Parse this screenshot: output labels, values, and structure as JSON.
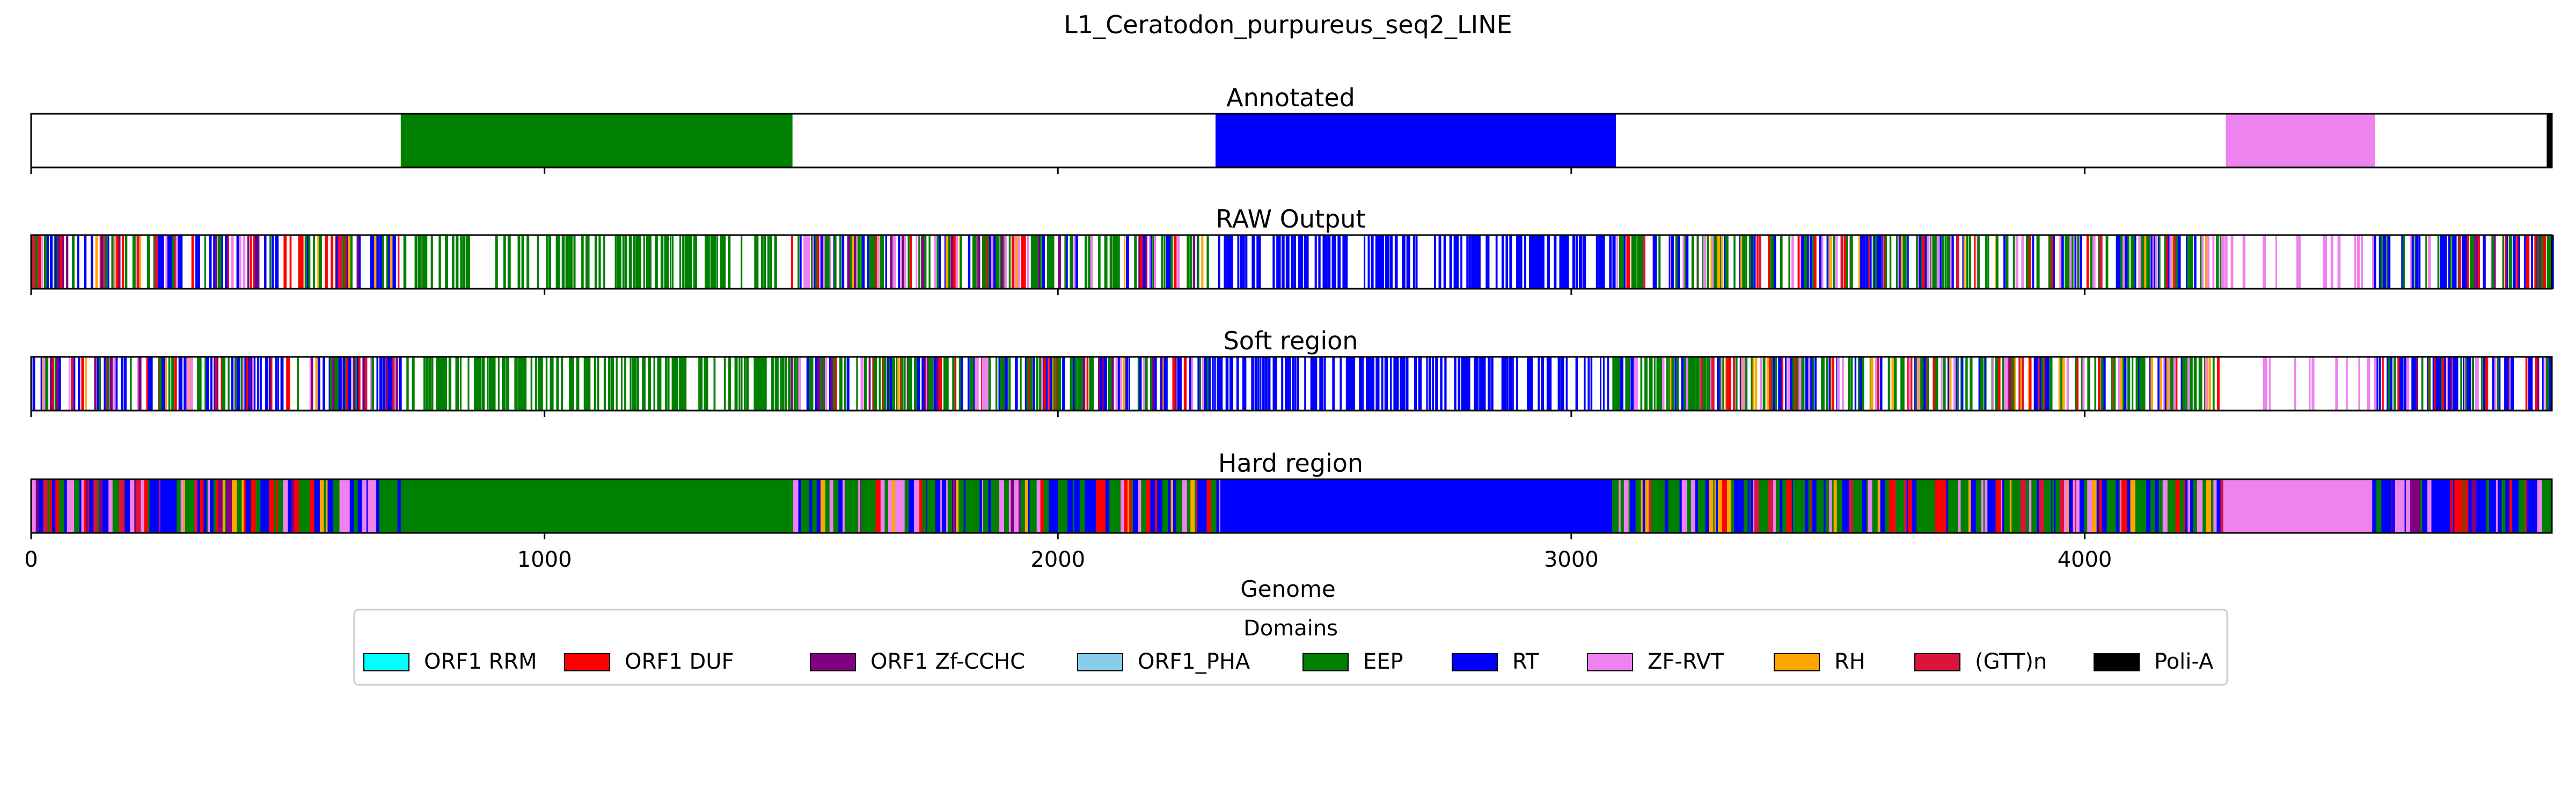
{
  "chart_data": {
    "type": "heatmap",
    "title": "L1_Ceratodon_purpureus_seq2_LINE",
    "xlabel": "Genome",
    "xlim": [
      0,
      4910
    ],
    "xticks": [
      0,
      1000,
      2000,
      3000,
      4000
    ],
    "xtick_labels": [
      "0",
      "1000",
      "2000",
      "3000",
      "4000"
    ],
    "grid": "dashed vertical gridlines at x ticks",
    "legend": {
      "title": "Domains",
      "placement": "bottom-center",
      "entries": [
        {
          "label": "ORF1 RRM",
          "color": "#00ffff"
        },
        {
          "label": "ORF1 DUF",
          "color": "#ff0000"
        },
        {
          "label": "ORF1 Zf-CCHC",
          "color": "#800080"
        },
        {
          "label": "ORF1_PHA",
          "color": "#87ceeb"
        },
        {
          "label": "EEP",
          "color": "#008000"
        },
        {
          "label": "RT",
          "color": "#0000ff"
        },
        {
          "label": "ZF-RVT",
          "color": "#ee82ee"
        },
        {
          "label": "RH",
          "color": "#ffa500"
        },
        {
          "label": "(GTT)n",
          "color": "#dc143c"
        },
        {
          "label": "Poli-A",
          "color": "#000000"
        }
      ]
    },
    "tracks": [
      {
        "name": "Annotated",
        "segments": [
          {
            "domain": "EEP",
            "start": 720,
            "end": 1483
          },
          {
            "domain": "RT",
            "start": 2307,
            "end": 3087
          },
          {
            "domain": "ZF-RVT",
            "start": 4275,
            "end": 4566
          },
          {
            "domain": "Poli-A",
            "start": 4900,
            "end": 4910
          }
        ]
      },
      {
        "name": "RAW Output",
        "mode": "sparse",
        "regions": [
          {
            "start": 0,
            "end": 720,
            "mix": [
              "RT",
              "EEP",
              "ORF1 DUF",
              "ZF-RVT",
              "ORF1 Zf-CCHC",
              "RH",
              "(GTT)n"
            ],
            "density": 0.55
          },
          {
            "start": 720,
            "end": 1480,
            "mix": [
              "EEP"
            ],
            "density": 0.45
          },
          {
            "start": 1480,
            "end": 2300,
            "mix": [
              "EEP",
              "RT",
              "ZF-RVT",
              "ORF1 DUF",
              "ORF1 Zf-CCHC",
              "RH"
            ],
            "density": 0.6
          },
          {
            "start": 2300,
            "end": 3080,
            "mix": [
              "RT"
            ],
            "density": 0.5
          },
          {
            "start": 3080,
            "end": 4270,
            "mix": [
              "EEP",
              "RT",
              "ZF-RVT",
              "ORF1 DUF",
              "RH",
              "(GTT)n"
            ],
            "density": 0.6
          },
          {
            "start": 4270,
            "end": 4560,
            "mix": [
              "ZF-RVT"
            ],
            "density": 0.18
          },
          {
            "start": 4560,
            "end": 4910,
            "mix": [
              "RT",
              "EEP",
              "ORF1 DUF",
              "ZF-RVT",
              "ORF1 Zf-CCHC"
            ],
            "density": 0.6
          }
        ]
      },
      {
        "name": "Soft region",
        "mode": "sparse",
        "regions": [
          {
            "start": 0,
            "end": 720,
            "mix": [
              "RT",
              "EEP",
              "ORF1 DUF",
              "ZF-RVT",
              "ORF1 Zf-CCHC",
              "RH",
              "(GTT)n"
            ],
            "density": 0.55
          },
          {
            "start": 720,
            "end": 1480,
            "mix": [
              "EEP"
            ],
            "density": 0.48
          },
          {
            "start": 1480,
            "end": 2300,
            "mix": [
              "EEP",
              "RT",
              "ZF-RVT",
              "ORF1 DUF",
              "ORF1 Zf-CCHC",
              "RH"
            ],
            "density": 0.62
          },
          {
            "start": 2300,
            "end": 3080,
            "mix": [
              "RT"
            ],
            "density": 0.55
          },
          {
            "start": 3080,
            "end": 4270,
            "mix": [
              "EEP",
              "RT",
              "ZF-RVT",
              "ORF1 DUF",
              "RH",
              "(GTT)n"
            ],
            "density": 0.62
          },
          {
            "start": 4270,
            "end": 4560,
            "mix": [
              "ZF-RVT"
            ],
            "density": 0.2
          },
          {
            "start": 4560,
            "end": 4910,
            "mix": [
              "RT",
              "EEP",
              "ORF1 DUF",
              "ZF-RVT",
              "ORF1 Zf-CCHC"
            ],
            "density": 0.62
          }
        ]
      },
      {
        "name": "Hard region",
        "mode": "dense",
        "regions": [
          {
            "start": 0,
            "end": 720,
            "mix": [
              "RT",
              "EEP",
              "ORF1 DUF",
              "ZF-RVT",
              "ORF1 Zf-CCHC",
              "RH",
              "(GTT)n"
            ]
          },
          {
            "start": 720,
            "end": 1480,
            "mix": [
              "EEP"
            ]
          },
          {
            "start": 1480,
            "end": 2320,
            "mix": [
              "EEP",
              "RT",
              "ZF-RVT",
              "ORF1 DUF",
              "ORF1 Zf-CCHC",
              "RH"
            ]
          },
          {
            "start": 2320,
            "end": 3080,
            "mix": [
              "RT"
            ]
          },
          {
            "start": 3080,
            "end": 4270,
            "mix": [
              "EEP",
              "RT",
              "ZF-RVT",
              "ORF1 DUF",
              "RH",
              "(GTT)n"
            ]
          },
          {
            "start": 4270,
            "end": 4560,
            "mix": [
              "ZF-RVT"
            ]
          },
          {
            "start": 4560,
            "end": 4910,
            "mix": [
              "RT",
              "EEP",
              "ORF1 DUF",
              "ZF-RVT",
              "ORF1 Zf-CCHC"
            ]
          }
        ]
      }
    ]
  }
}
